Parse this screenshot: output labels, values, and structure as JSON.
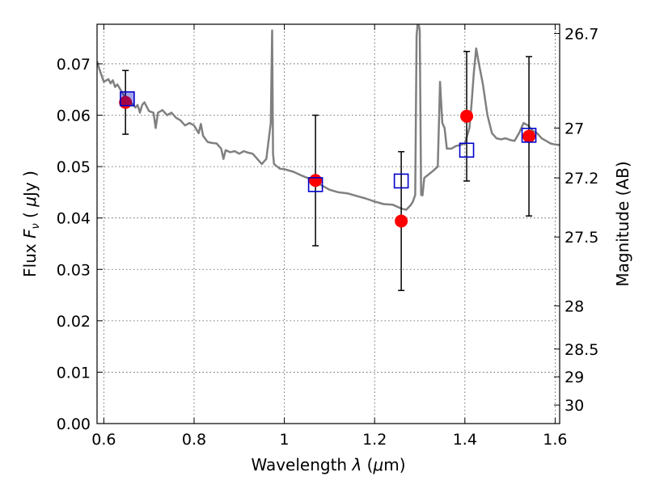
{
  "chart_data": {
    "type": "scatter",
    "title": "",
    "xlabel": "Wavelength  λ (μm)",
    "ylabel": "Flux  F_ν  ( μJy )",
    "ylabel_parts": {
      "pre": "Flux  ",
      "sym": "F",
      "sub": "ν",
      "mid": "  ( ",
      "mu": "μ",
      "post": "Jy )"
    },
    "xlabel_parts": {
      "pre": "Wavelength  ",
      "sym": "λ",
      "mid": " (",
      "mu": "μ",
      "post": "m)"
    },
    "y2label": "Magnitude (AB)",
    "xlim": [
      0.585,
      1.61
    ],
    "ylim": [
      0.0,
      0.0777
    ],
    "xticks": [
      0.6,
      0.8,
      1.0,
      1.2,
      1.4,
      1.6
    ],
    "xtick_labels": [
      "0.6",
      "0.8",
      "1",
      "1.2",
      "1.4",
      "1.6"
    ],
    "yticks": [
      0.0,
      0.01,
      0.02,
      0.03,
      0.04,
      0.05,
      0.06,
      0.07
    ],
    "ytick_labels": [
      "0.00",
      "0.01",
      "0.02",
      "0.03",
      "0.04",
      "0.05",
      "0.06",
      "0.07"
    ],
    "y2ticks": [
      {
        "flux": 0.0759,
        "label": "26.7"
      },
      {
        "flux": 0.0575,
        "label": "27"
      },
      {
        "flux": 0.0478,
        "label": "27.2"
      },
      {
        "flux": 0.0363,
        "label": "27.5"
      },
      {
        "flux": 0.0229,
        "label": "28"
      },
      {
        "flux": 0.0145,
        "label": "28.5"
      },
      {
        "flux": 0.0091,
        "label": "29"
      },
      {
        "flux": 0.0036,
        "label": "30"
      }
    ],
    "grid": true,
    "colors": {
      "model": "#808080",
      "observed": "#ff0000",
      "model_band": "#0000cc",
      "errorbar": "#000000"
    },
    "model_spectrum": {
      "x": [
        0.585,
        0.59,
        0.6,
        0.61,
        0.615,
        0.62,
        0.625,
        0.63,
        0.64,
        0.65,
        0.66,
        0.67,
        0.675,
        0.68,
        0.685,
        0.69,
        0.7,
        0.71,
        0.715,
        0.72,
        0.73,
        0.74,
        0.75,
        0.76,
        0.77,
        0.78,
        0.79,
        0.8,
        0.81,
        0.815,
        0.82,
        0.83,
        0.84,
        0.85,
        0.86,
        0.865,
        0.87,
        0.88,
        0.89,
        0.9,
        0.91,
        0.92,
        0.93,
        0.94,
        0.95,
        0.96,
        0.97,
        0.973,
        0.975,
        0.977,
        0.98,
        0.99,
        1.0,
        1.02,
        1.04,
        1.06,
        1.08,
        1.1,
        1.12,
        1.14,
        1.16,
        1.18,
        1.2,
        1.22,
        1.24,
        1.26,
        1.27,
        1.28,
        1.285,
        1.29,
        1.293,
        1.296,
        1.3,
        1.303,
        1.306,
        1.31,
        1.32,
        1.33,
        1.34,
        1.345,
        1.35,
        1.355,
        1.36,
        1.37,
        1.38,
        1.39,
        1.4,
        1.41,
        1.415,
        1.42,
        1.425,
        1.43,
        1.44,
        1.45,
        1.46,
        1.47,
        1.48,
        1.49,
        1.5,
        1.51,
        1.52,
        1.53,
        1.54,
        1.55,
        1.56,
        1.57,
        1.58,
        1.59,
        1.6,
        1.61
      ],
      "y": [
        0.0705,
        0.069,
        0.0665,
        0.067,
        0.0662,
        0.0668,
        0.0655,
        0.066,
        0.0645,
        0.063,
        0.0625,
        0.0615,
        0.062,
        0.0605,
        0.062,
        0.0625,
        0.0608,
        0.0605,
        0.0575,
        0.0605,
        0.061,
        0.06,
        0.0605,
        0.0595,
        0.059,
        0.058,
        0.0585,
        0.058,
        0.0565,
        0.0583,
        0.056,
        0.0548,
        0.0546,
        0.0545,
        0.0535,
        0.0515,
        0.0532,
        0.0528,
        0.053,
        0.0525,
        0.053,
        0.0527,
        0.0525,
        0.0515,
        0.0505,
        0.0515,
        0.0585,
        0.0765,
        0.0525,
        0.0505,
        0.0503,
        0.0496,
        0.0495,
        0.049,
        0.0482,
        0.0475,
        0.0465,
        0.0455,
        0.045,
        0.0448,
        0.0443,
        0.0438,
        0.0432,
        0.0427,
        0.0426,
        0.0418,
        0.0416,
        0.0425,
        0.0432,
        0.0445,
        0.0755,
        0.0785,
        0.0765,
        0.0445,
        0.0444,
        0.0478,
        0.0485,
        0.0492,
        0.05,
        0.0665,
        0.0585,
        0.0575,
        0.0535,
        0.0535,
        0.054,
        0.0542,
        0.0545,
        0.0575,
        0.0625,
        0.0685,
        0.073,
        0.0705,
        0.066,
        0.06,
        0.0565,
        0.0555,
        0.0553,
        0.0555,
        0.0552,
        0.055,
        0.0565,
        0.0585,
        0.058,
        0.057,
        0.0565,
        0.0555,
        0.055,
        0.0545,
        0.0543,
        0.0542
      ]
    },
    "observed": {
      "x": [
        0.648,
        1.069,
        1.259,
        1.404,
        1.542
      ],
      "y": [
        0.0625,
        0.0473,
        0.0394,
        0.0598,
        0.0559
      ],
      "yerr": [
        0.0062,
        0.0127,
        0.0135,
        0.0126,
        0.0155
      ]
    },
    "model_band": {
      "x": [
        0.652,
        1.069,
        1.259,
        1.404,
        1.542
      ],
      "y": [
        0.0632,
        0.0465,
        0.0472,
        0.0532,
        0.0561
      ]
    }
  }
}
